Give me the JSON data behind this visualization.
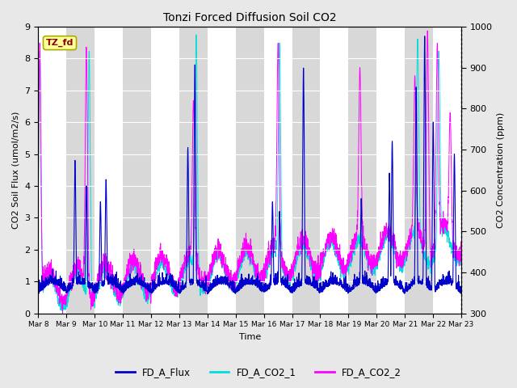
{
  "title": "Tonzi Forced Diffusion Soil CO2",
  "xlabel": "Time",
  "ylabel_left": "CO2 Soil Flux (umol/m2/s)",
  "ylabel_right": "CO2 Concentration (ppm)",
  "ylim_left": [
    0.0,
    9.0
  ],
  "ylim_right": [
    300,
    1000
  ],
  "xtick_labels": [
    "Mar 8",
    "Mar 9",
    "Mar 10",
    "Mar 11",
    "Mar 12",
    "Mar 13",
    "Mar 14",
    "Mar 15",
    "Mar 16",
    "Mar 17",
    "Mar 18",
    "Mar 19",
    "Mar 20",
    "Mar 21",
    "Mar 22",
    "Mar 23"
  ],
  "annotation_text": "TZ_fd",
  "annotation_color": "#8B0000",
  "annotation_bg": "#FFFF99",
  "fig_bg_color": "#E8E8E8",
  "plot_bg_white": "#FFFFFF",
  "plot_bg_gray": "#D8D8D8",
  "line_flux_color": "#0000CC",
  "line_co2_1_color": "#00DDDD",
  "line_co2_2_color": "#FF00FF",
  "legend_labels": [
    "FD_A_Flux",
    "FD_A_CO2_1",
    "FD_A_CO2_2"
  ],
  "n_points": 2880,
  "days": 15,
  "grid_color": "#CCCCCC",
  "right_axis_dotted": true
}
